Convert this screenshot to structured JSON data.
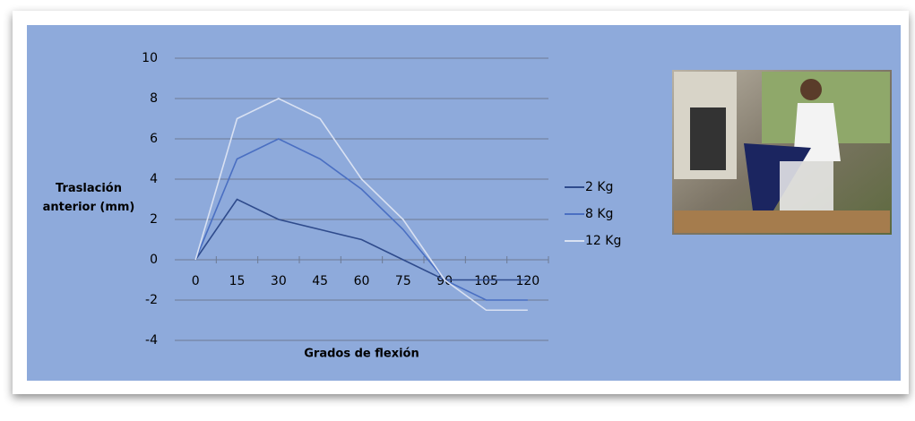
{
  "chart_data": {
    "type": "line",
    "x_label": "Grados de flexión",
    "y_label": "Traslación anterior (mm)",
    "categories": [
      "0",
      "15",
      "30",
      "45",
      "60",
      "75",
      "90",
      "105",
      "120"
    ],
    "series": [
      {
        "name": "2 Kg",
        "color": "#2f4b8c",
        "values": [
          0,
          3,
          2,
          1.5,
          1,
          0,
          -1,
          -1,
          -1
        ]
      },
      {
        "name": "8 Kg",
        "color": "#4a6fc2",
        "values": [
          0,
          5,
          6,
          5,
          3.5,
          1.5,
          -1,
          -2,
          -2
        ]
      },
      {
        "name": "12 Kg",
        "color": "#d9e1f2",
        "values": [
          0,
          7,
          8,
          7,
          4,
          2,
          -1,
          -2.5,
          -2.5
        ]
      }
    ],
    "ylim": [
      -4,
      10
    ],
    "yticks": [
      -4,
      -2,
      0,
      2,
      4,
      6,
      8,
      10
    ],
    "grid": true
  }
}
